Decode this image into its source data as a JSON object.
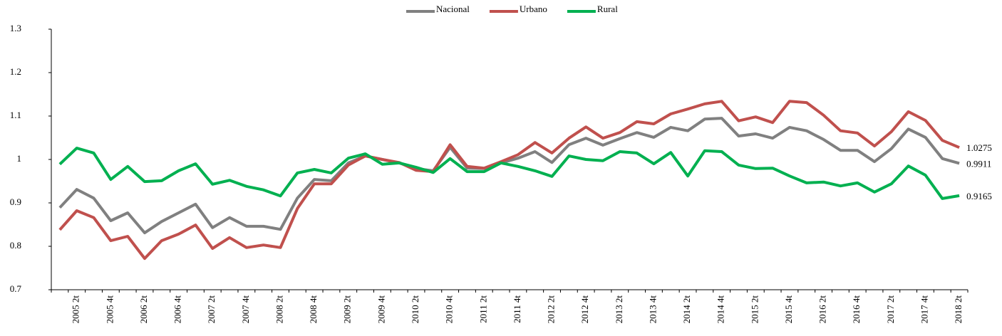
{
  "chart_data": {
    "type": "line",
    "categories": [
      null,
      "2005 2t",
      null,
      "2005 4t",
      null,
      "2006 2t",
      null,
      "2006 4t",
      null,
      "2007 2t",
      null,
      "2007 4t",
      null,
      "2008 2t",
      null,
      "2008 4t",
      null,
      "2009 2t",
      null,
      "2009 4t",
      null,
      "2010 2t",
      null,
      "2010 4t",
      null,
      "2011 2t",
      null,
      "2011 4t",
      null,
      "2012 2t",
      null,
      "2012 4t",
      null,
      "2013 2t",
      null,
      "2013 4t",
      null,
      "2014 2t",
      null,
      "2014 4t",
      null,
      "2015 2t",
      null,
      "2015 4t",
      null,
      "2016 2t",
      null,
      "2016 4t",
      null,
      "2017 2t",
      null,
      "2017 4t",
      null,
      "2018 2t"
    ],
    "series": [
      {
        "name": "Nacional",
        "color": "#808080",
        "values": [
          0.889,
          0.931,
          0.911,
          0.859,
          0.877,
          0.831,
          0.857,
          0.877,
          0.897,
          0.843,
          0.866,
          0.846,
          0.846,
          0.839,
          0.911,
          0.954,
          0.951,
          0.992,
          1.008,
          1.0,
          0.992,
          0.979,
          0.974,
          1.028,
          0.98,
          0.979,
          0.992,
          1.003,
          1.018,
          0.993,
          1.034,
          1.049,
          1.033,
          1.048,
          1.062,
          1.051,
          1.074,
          1.066,
          1.093,
          1.095,
          1.054,
          1.059,
          1.049,
          1.074,
          1.066,
          1.046,
          1.021,
          1.021,
          0.995,
          1.025,
          1.07,
          1.051,
          1.002,
          0.9911
        ]
      },
      {
        "name": "Urbano",
        "color": "#c0504d",
        "values": [
          0.838,
          0.882,
          0.866,
          0.813,
          0.823,
          0.772,
          0.813,
          0.828,
          0.849,
          0.795,
          0.82,
          0.797,
          0.803,
          0.797,
          0.887,
          0.944,
          0.944,
          0.987,
          1.008,
          1.0,
          0.993,
          0.975,
          0.972,
          1.034,
          0.984,
          0.98,
          0.995,
          1.011,
          1.039,
          1.015,
          1.049,
          1.075,
          1.049,
          1.062,
          1.087,
          1.082,
          1.105,
          1.116,
          1.128,
          1.134,
          1.089,
          1.098,
          1.085,
          1.134,
          1.131,
          1.102,
          1.066,
          1.061,
          1.031,
          1.064,
          1.11,
          1.09,
          1.044,
          1.0275
        ]
      },
      {
        "name": "Rural",
        "color": "#00b050",
        "values": [
          0.989,
          1.026,
          1.015,
          0.954,
          0.984,
          0.949,
          0.951,
          0.974,
          0.99,
          0.943,
          0.952,
          0.938,
          0.93,
          0.916,
          0.969,
          0.977,
          0.969,
          1.003,
          1.013,
          0.989,
          0.992,
          0.982,
          0.97,
          1.002,
          0.972,
          0.972,
          0.992,
          0.984,
          0.974,
          0.961,
          1.008,
          1.0,
          0.997,
          1.018,
          1.015,
          0.99,
          1.016,
          0.962,
          1.02,
          1.018,
          0.987,
          0.979,
          0.98,
          0.962,
          0.946,
          0.948,
          0.939,
          0.946,
          0.925,
          0.944,
          0.985,
          0.964,
          0.91,
          0.9165
        ]
      }
    ],
    "ylim": [
      0.7,
      1.3
    ],
    "yticks": [
      0.7,
      0.8,
      0.9,
      1,
      1.1,
      1.2,
      1.3
    ],
    "grid": false,
    "legend": "top",
    "label_last": true
  }
}
